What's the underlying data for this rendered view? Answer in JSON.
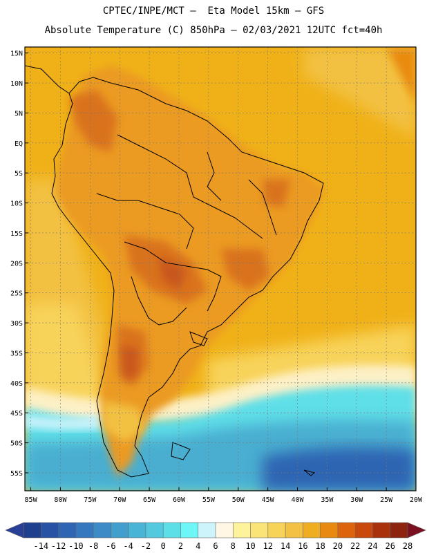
{
  "header": {
    "line1": "CPTEC/INPE/MCT –  Eta Model 15km – GFS",
    "line2": "Absolute Temperature (C) 850hPa – 02/03/2021 12UTC fct=40h"
  },
  "map": {
    "lon_range": [
      -86,
      -20
    ],
    "lat_range": [
      -58,
      16
    ],
    "lat_ticks": [
      {
        "value": 15,
        "label": "15N"
      },
      {
        "value": 10,
        "label": "10N"
      },
      {
        "value": 5,
        "label": "5N"
      },
      {
        "value": 0,
        "label": "EQ"
      },
      {
        "value": -5,
        "label": "5S"
      },
      {
        "value": -10,
        "label": "10S"
      },
      {
        "value": -15,
        "label": "15S"
      },
      {
        "value": -20,
        "label": "20S"
      },
      {
        "value": -25,
        "label": "25S"
      },
      {
        "value": -30,
        "label": "30S"
      },
      {
        "value": -35,
        "label": "35S"
      },
      {
        "value": -40,
        "label": "40S"
      },
      {
        "value": -45,
        "label": "45S"
      },
      {
        "value": -50,
        "label": "50S"
      },
      {
        "value": -55,
        "label": "55S"
      }
    ],
    "lon_ticks": [
      {
        "value": -85,
        "label": "85W"
      },
      {
        "value": -80,
        "label": "80W"
      },
      {
        "value": -75,
        "label": "75W"
      },
      {
        "value": -70,
        "label": "70W"
      },
      {
        "value": -65,
        "label": "65W"
      },
      {
        "value": -60,
        "label": "60W"
      },
      {
        "value": -55,
        "label": "55W"
      },
      {
        "value": -50,
        "label": "50W"
      },
      {
        "value": -45,
        "label": "45W"
      },
      {
        "value": -40,
        "label": "40W"
      },
      {
        "value": -35,
        "label": "35W"
      },
      {
        "value": -30,
        "label": "30W"
      },
      {
        "value": -25,
        "label": "25W"
      },
      {
        "value": -20,
        "label": "20W"
      }
    ],
    "colors": {
      "ocean_north": "#f0b118",
      "ocean_mid": "#f3c143",
      "pale": "#fdf0c6",
      "cyan": "#5fdfe8",
      "blue": "#48aed0",
      "land": "#eb9a22",
      "land_hot": "#d9721c",
      "land_hotter": "#c8571a"
    }
  },
  "colorbar": {
    "labels": [
      "-14",
      "-12",
      "-10",
      "-8",
      "-6",
      "-4",
      "-2",
      "0",
      "2",
      "4",
      "6",
      "8",
      "10",
      "12",
      "14",
      "16",
      "18",
      "20",
      "22",
      "24",
      "26",
      "28"
    ],
    "colors": [
      "#1f3f8f",
      "#2852a3",
      "#2f65b3",
      "#3678be",
      "#3c8bc6",
      "#429fcd",
      "#49b4d6",
      "#52c9df",
      "#5ddfe8",
      "#6ef6f6",
      "#cdf3fb",
      "#fff6e3",
      "#fdf39c",
      "#fbe476",
      "#f8d35a",
      "#f3c143",
      "#efae22",
      "#e98a10",
      "#dc640c",
      "#c9480c",
      "#a9320d",
      "#8c2410"
    ]
  }
}
